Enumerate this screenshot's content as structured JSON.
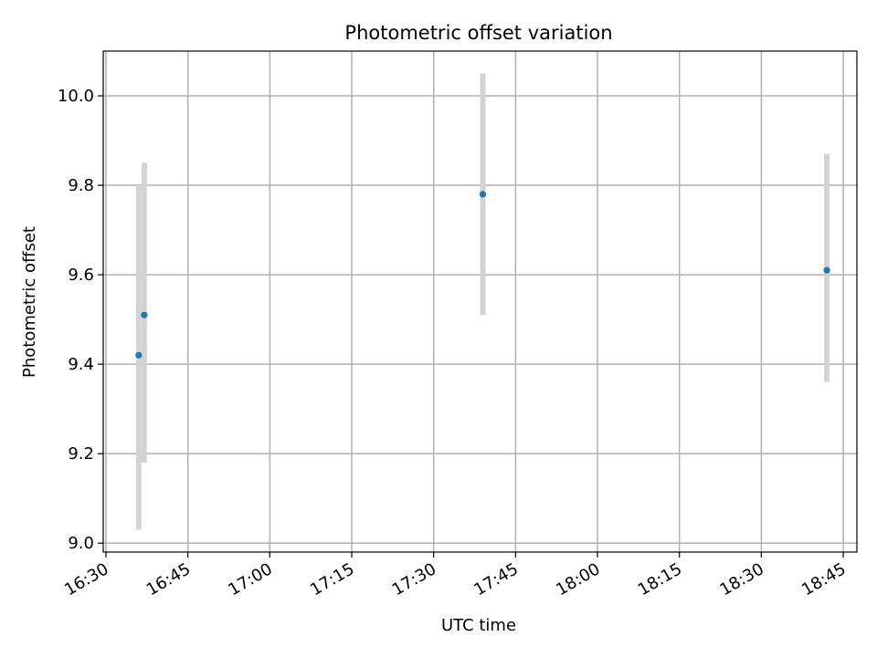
{
  "chart_data": {
    "type": "scatter",
    "title": "Photometric offset variation",
    "xlabel": "UTC time",
    "ylabel": "Photometric offset",
    "x_tick_labels": [
      "16:30",
      "16:45",
      "17:00",
      "17:15",
      "17:30",
      "17:45",
      "18:00",
      "18:15",
      "18:30",
      "18:45"
    ],
    "x_tick_minutes": [
      0,
      15,
      30,
      45,
      60,
      75,
      90,
      105,
      120,
      135
    ],
    "xlim_minutes": [
      -0.5,
      137.5
    ],
    "y_ticks": [
      9.0,
      9.2,
      9.4,
      9.6,
      9.8,
      10.0
    ],
    "y_tick_labels": [
      "9.0",
      "9.2",
      "9.4",
      "9.6",
      "9.8",
      "10.0"
    ],
    "ylim": [
      8.98,
      10.1
    ],
    "grid": true,
    "series": [
      {
        "points": [
          {
            "time": "16:36",
            "y": 9.42,
            "err_low": 9.03,
            "err_high": 9.8
          },
          {
            "time": "16:37",
            "y": 9.51,
            "err_low": 9.18,
            "err_high": 9.85
          },
          {
            "time": "17:39",
            "y": 9.78,
            "err_low": 9.51,
            "err_high": 10.05
          },
          {
            "time": "18:42",
            "y": 9.61,
            "err_low": 9.36,
            "err_high": 9.87
          }
        ]
      }
    ],
    "colors": {
      "marker": "#1f77b4",
      "errorbar": "#d3d3d3",
      "grid": "#b0b0b0",
      "axes": "#000000"
    }
  }
}
